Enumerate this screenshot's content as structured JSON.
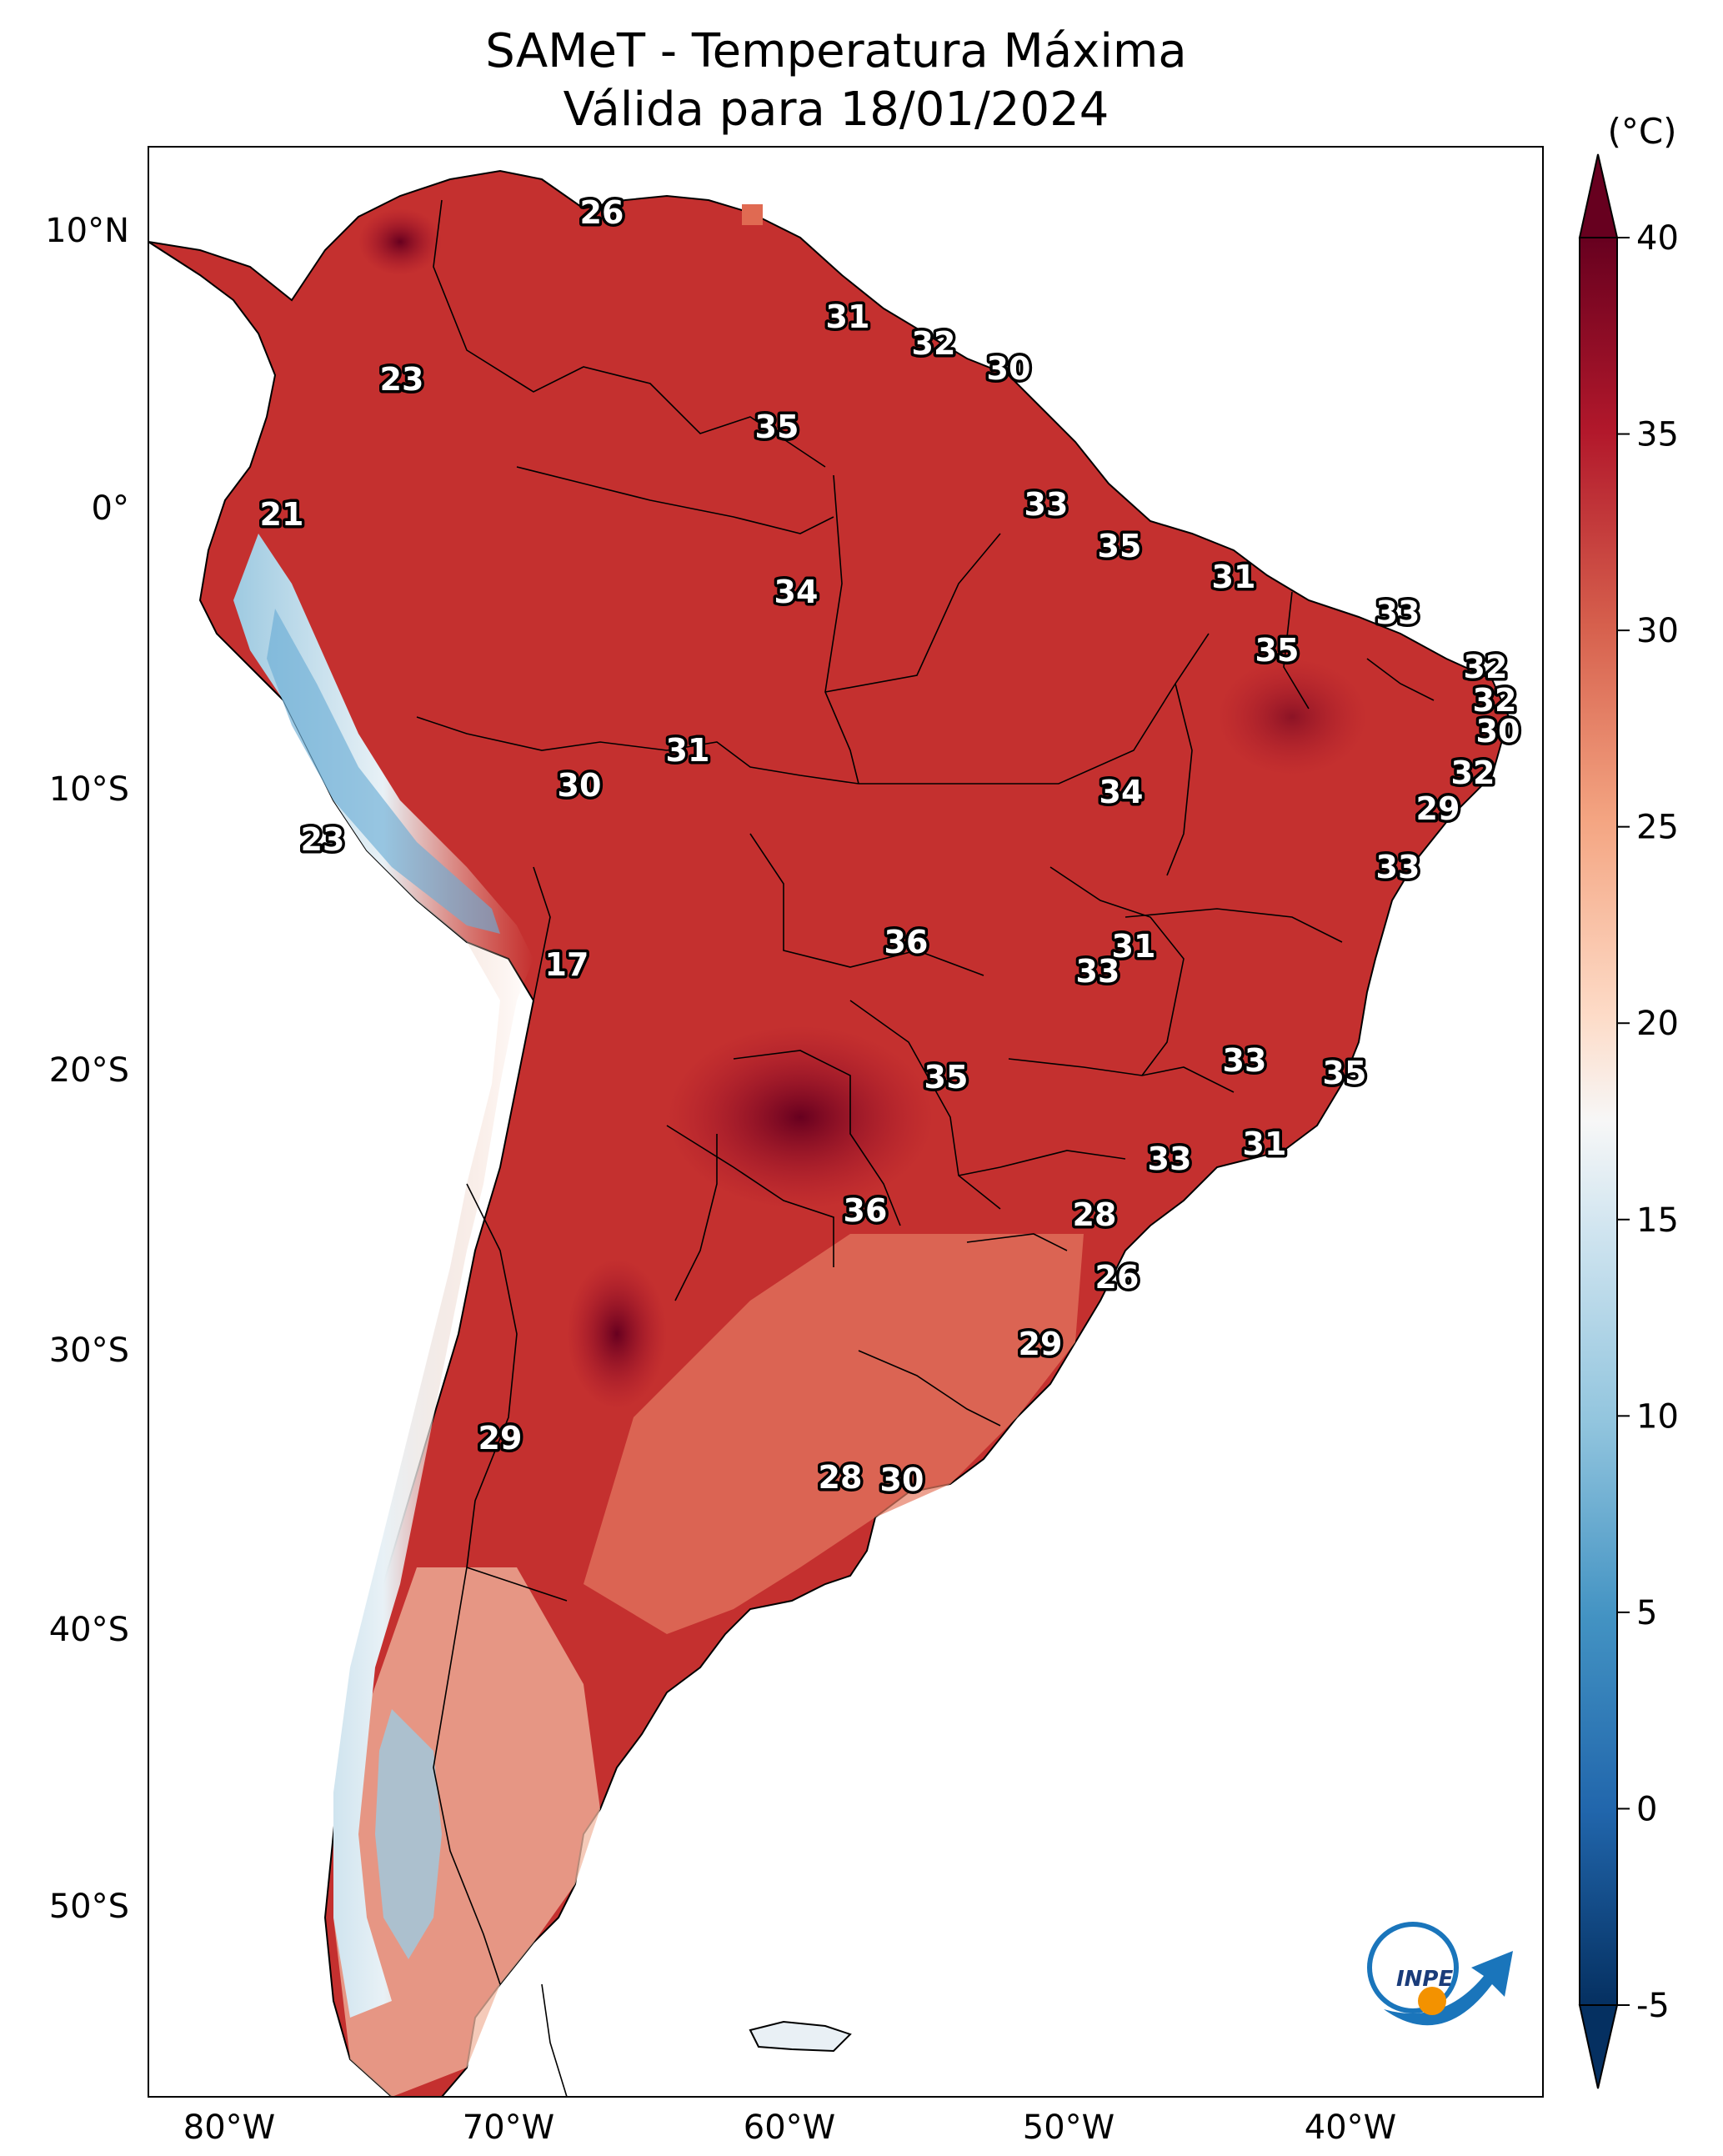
{
  "title_line1": "SAMeT - Temperatura Máxima",
  "title_line2": "Válida para 18/01/2024",
  "colorbar": {
    "unit": "(°C)",
    "ticks": [
      "40",
      "35",
      "30",
      "25",
      "20",
      "15",
      "10",
      "5",
      "0",
      "-5"
    ],
    "colors": {
      "hot": "#67001f",
      "warm": "#d6604d",
      "neutral": "#f7f7f7",
      "cool": "#4393c3",
      "cold": "#053061"
    }
  },
  "lat_labels": [
    "10°N",
    "0°",
    "10°S",
    "20°S",
    "30°S",
    "40°S",
    "50°S"
  ],
  "lon_labels": [
    "80°W",
    "70°W",
    "60°W",
    "50°W",
    "40°W"
  ],
  "city_values": [
    "26",
    "31",
    "32",
    "30",
    "23",
    "35",
    "21",
    "33",
    "35",
    "34",
    "31",
    "33",
    "35",
    "32",
    "32",
    "30",
    "31",
    "30",
    "32",
    "34",
    "29",
    "23",
    "33",
    "36",
    "31",
    "33",
    "17",
    "35",
    "33",
    "35",
    "33",
    "31",
    "36",
    "28",
    "26",
    "29",
    "29",
    "28",
    "30"
  ],
  "logo": {
    "text": "INPE",
    "icon": "inpe-logo-icon"
  }
}
